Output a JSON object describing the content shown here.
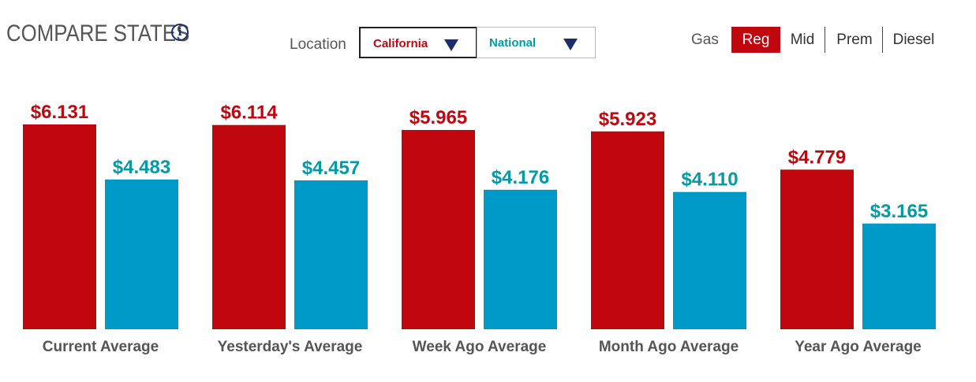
{
  "header": {
    "title": "COMPARE STATES",
    "info_icon": "info-icon",
    "location_label": "Location",
    "location_primary": "California",
    "location_secondary": "National",
    "gas_label": "Gas",
    "gas_tabs": [
      "Reg",
      "Mid",
      "Prem",
      "Diesel"
    ],
    "gas_active": "Reg"
  },
  "colors": {
    "california": "#c0070e",
    "national": "#009ac9",
    "national_label": "#009ba8",
    "accent_dark": "#1b2d6b"
  },
  "chart_data": {
    "type": "bar",
    "categories": [
      "Current Average",
      "Yesterday's Average",
      "Week Ago Average",
      "Month Ago Average",
      "Year Ago Average"
    ],
    "series": [
      {
        "values": [
          6.131,
          6.114,
          5.965,
          5.923,
          4.779
        ],
        "labels": [
          "$6.131",
          "$6.114",
          "$5.965",
          "$5.923",
          "$4.779"
        ]
      },
      {
        "values": [
          4.483,
          4.457,
          4.176,
          4.11,
          3.165
        ],
        "labels": [
          "$4.483",
          "$4.457",
          "$4.176",
          "$4.110",
          "$3.165"
        ]
      }
    ],
    "ylim": [
      0,
      6.3
    ],
    "grid": false
  }
}
